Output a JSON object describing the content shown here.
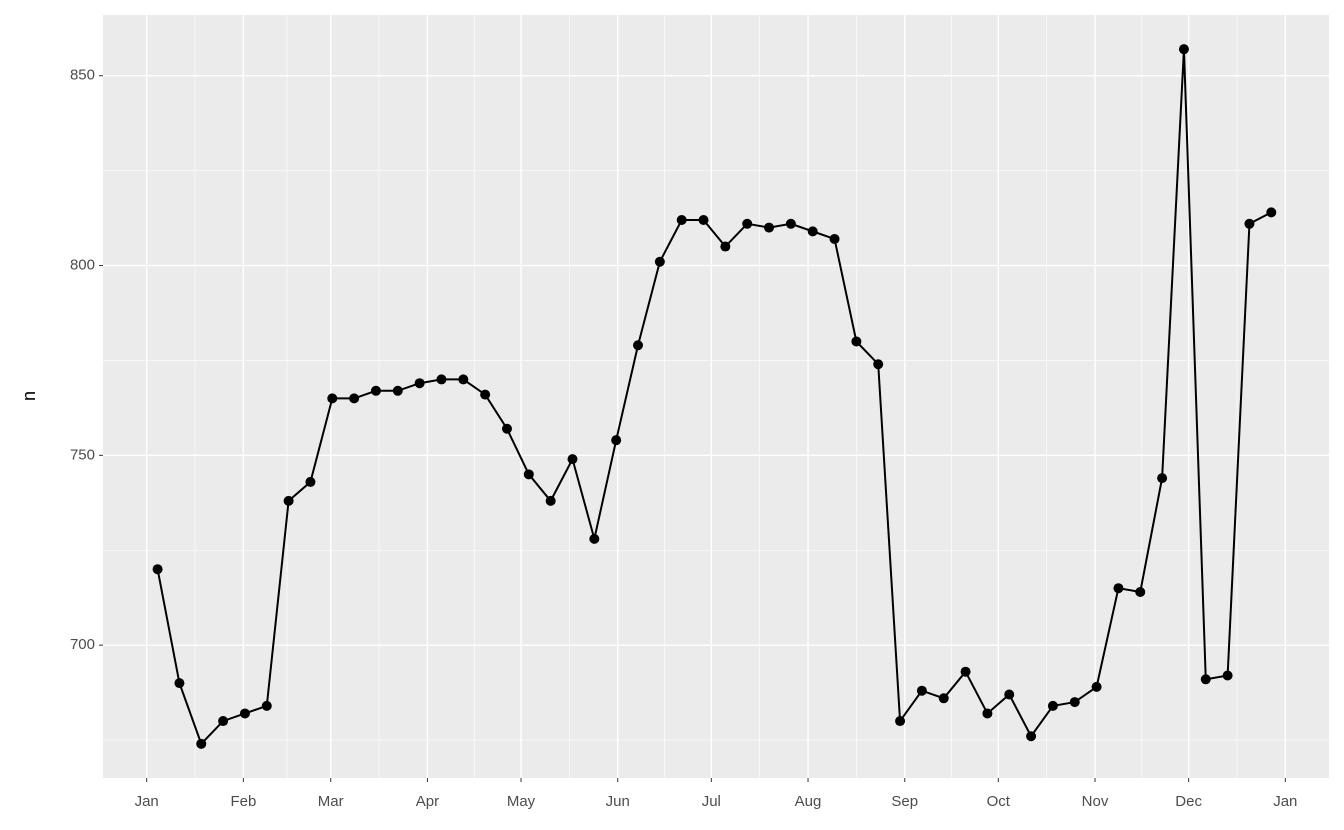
{
  "chart_data": {
    "type": "line",
    "y_label": "n",
    "x": [
      3.5,
      10.5,
      17.5,
      24.5,
      31.5,
      38.5,
      45.5,
      52.5,
      59.5,
      66.5,
      73.5,
      80.5,
      87.5,
      94.5,
      101.5,
      108.5,
      115.5,
      122.5,
      129.5,
      136.5,
      143.5,
      150.5,
      157.5,
      164.5,
      171.5,
      178.5,
      185.5,
      192.5,
      199.5,
      206.5,
      213.5,
      220.5,
      227.5,
      234.5,
      241.5,
      248.5,
      255.5,
      262.5,
      269.5,
      276.5,
      283.5,
      290.5,
      297.5,
      304.5,
      311.5,
      318.5,
      325.5,
      332.5,
      339.5,
      346.5,
      353.5,
      360.5
    ],
    "values": [
      720,
      690,
      674,
      680,
      682,
      684,
      738,
      743,
      765,
      765,
      767,
      767,
      769,
      770,
      770,
      766,
      757,
      745,
      738,
      749,
      728,
      754,
      779,
      801,
      812,
      812,
      805,
      811,
      810,
      811,
      809,
      807,
      780,
      774,
      680,
      688,
      686,
      693,
      682,
      687,
      676,
      684,
      685,
      689,
      715,
      714,
      744,
      857,
      691,
      692,
      811,
      814
    ],
    "color": "#000000",
    "xlim": [
      -14,
      379
    ],
    "xticks": [
      {
        "value": 0,
        "label": "Jan"
      },
      {
        "value": 31,
        "label": "Feb"
      },
      {
        "value": 59,
        "label": "Mar"
      },
      {
        "value": 90,
        "label": "Apr"
      },
      {
        "value": 120,
        "label": "May"
      },
      {
        "value": 151,
        "label": "Jun"
      },
      {
        "value": 181,
        "label": "Jul"
      },
      {
        "value": 212,
        "label": "Aug"
      },
      {
        "value": 243,
        "label": "Sep"
      },
      {
        "value": 273,
        "label": "Oct"
      },
      {
        "value": 304,
        "label": "Nov"
      },
      {
        "value": 334,
        "label": "Dec"
      },
      {
        "value": 365,
        "label": "Jan"
      }
    ],
    "ylim": [
      665,
      866
    ],
    "yticks": [
      700,
      750,
      800,
      850
    ],
    "grid": true
  }
}
